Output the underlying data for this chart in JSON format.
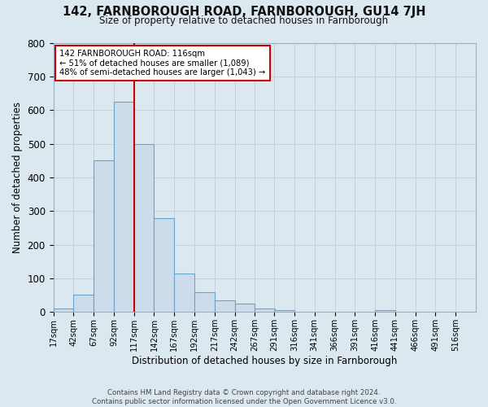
{
  "title": "142, FARNBOROUGH ROAD, FARNBOROUGH, GU14 7JH",
  "subtitle": "Size of property relative to detached houses in Farnborough",
  "xlabel": "Distribution of detached houses by size in Farnborough",
  "ylabel": "Number of detached properties",
  "bin_labels": [
    "17sqm",
    "42sqm",
    "67sqm",
    "92sqm",
    "117sqm",
    "142sqm",
    "167sqm",
    "192sqm",
    "217sqm",
    "242sqm",
    "267sqm",
    "291sqm",
    "316sqm",
    "341sqm",
    "366sqm",
    "391sqm",
    "416sqm",
    "441sqm",
    "466sqm",
    "491sqm",
    "516sqm"
  ],
  "bar_heights": [
    10,
    52,
    450,
    625,
    500,
    280,
    115,
    60,
    35,
    25,
    10,
    5,
    0,
    0,
    0,
    0,
    5,
    0,
    0,
    0,
    0
  ],
  "bar_color": "#cddcea",
  "bar_edge_color": "#6ba3c8",
  "property_line_x": 117,
  "property_line_color": "#cc0000",
  "annotation_text": "142 FARNBOROUGH ROAD: 116sqm\n← 51% of detached houses are smaller (1,089)\n48% of semi-detached houses are larger (1,043) →",
  "annotation_box_color": "#ffffff",
  "annotation_box_edge_color": "#cc0000",
  "ylim": [
    0,
    800
  ],
  "yticks": [
    0,
    100,
    200,
    300,
    400,
    500,
    600,
    700,
    800
  ],
  "grid_color": "#c5d0dc",
  "background_color": "#dce8f0",
  "footer_line1": "Contains HM Land Registry data © Crown copyright and database right 2024.",
  "footer_line2": "Contains public sector information licensed under the Open Government Licence v3.0.",
  "bin_width": 25,
  "bin_starts": [
    17,
    42,
    67,
    92,
    117,
    142,
    167,
    192,
    217,
    242,
    267,
    291,
    316,
    341,
    366,
    391,
    416,
    441,
    466,
    491,
    516
  ]
}
